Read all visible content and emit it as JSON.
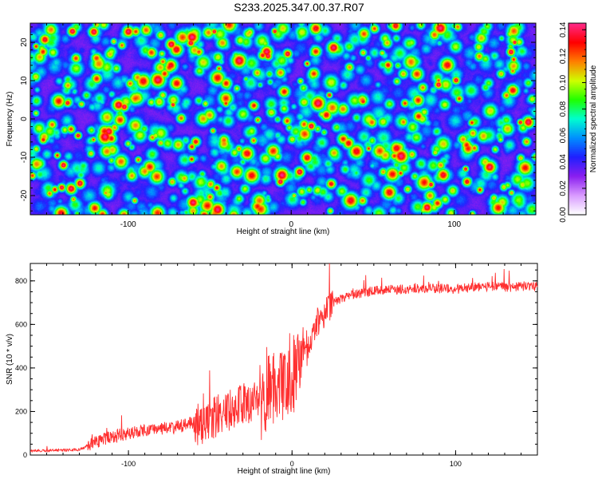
{
  "page": {
    "title": "S233.2025.347.00.37.R07"
  },
  "chart_data": [
    {
      "type": "heatmap",
      "name": "spectrogram",
      "xlabel": "Height of straight line (km)",
      "ylabel": "Frequency (Hz)",
      "xlim": [
        -160,
        150
      ],
      "ylim": [
        -25,
        25
      ],
      "xticks": [
        -100,
        0,
        100
      ],
      "xtick_labels": [
        "-100",
        "0",
        "100"
      ],
      "yticks": [
        -20,
        -10,
        0,
        10,
        20
      ],
      "ytick_labels": [
        "-20",
        "-10",
        "0",
        "10",
        "20"
      ],
      "colorbar": {
        "label": "Normalized spectral amplitude",
        "range": [
          0,
          0.145
        ],
        "ticks": [
          0,
          0.02,
          0.04,
          0.06,
          0.08,
          0.1,
          0.12,
          0.14
        ],
        "tick_labels": [
          "0.00",
          "0.02",
          "0.04",
          "0.06",
          "0.08",
          "0.10",
          "0.12",
          "0.14"
        ],
        "colors": [
          "#ffffff",
          "#d99aff",
          "#8a1ef0",
          "#2020ff",
          "#0090ff",
          "#00ffd0",
          "#20ff00",
          "#d0ff00",
          "#ff8000",
          "#ff0000",
          "#ff2a8a"
        ]
      },
      "typical_amplitude": 0.025,
      "peak_amplitude": 0.14
    },
    {
      "type": "line",
      "name": "snr",
      "xlabel": "Height of straight line (km)",
      "ylabel": "SNR (10 * v/v)",
      "xlim": [
        -160,
        150
      ],
      "ylim": [
        0,
        880
      ],
      "xticks": [
        -100,
        0,
        100
      ],
      "xtick_labels": [
        "-100",
        "0",
        "100"
      ],
      "yticks": [
        0,
        200,
        400,
        600,
        800
      ],
      "ytick_labels": [
        "0",
        "200",
        "400",
        "600",
        "800"
      ],
      "color": "#ff3030",
      "series": [
        {
          "name": "SNR",
          "x": [
            -160,
            -140,
            -130,
            -120,
            -110,
            -100,
            -90,
            -80,
            -70,
            -60,
            -50,
            -40,
            -30,
            -20,
            -10,
            -5,
            0,
            5,
            10,
            15,
            20,
            25,
            30,
            40,
            50,
            60,
            70,
            80,
            90,
            100,
            110,
            120,
            130,
            140,
            150
          ],
          "y": [
            20,
            22,
            25,
            60,
            85,
            100,
            110,
            120,
            130,
            150,
            185,
            220,
            250,
            280,
            340,
            380,
            400,
            450,
            520,
            600,
            660,
            700,
            720,
            740,
            755,
            760,
            762,
            765,
            765,
            762,
            770,
            775,
            770,
            775,
            775
          ]
        }
      ]
    }
  ]
}
